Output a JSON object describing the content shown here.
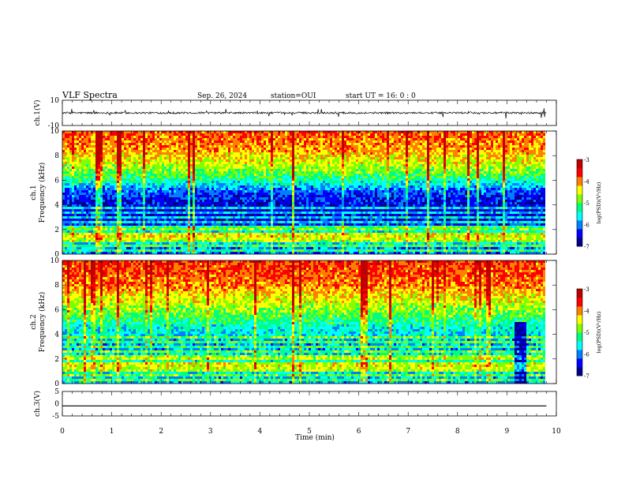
{
  "header": {
    "title": "VLF Spectra",
    "date": "Sep. 26, 2024",
    "station": "station=OUI",
    "start": "start UT =  16: 0  : 0"
  },
  "chart_data": [
    {
      "type": "line",
      "panel": "ch1-waveform",
      "ylabel": "ch.1(V)",
      "ylim": [
        -10,
        10
      ],
      "yticks": [
        "10",
        "-10"
      ],
      "xlim": [
        0,
        10
      ],
      "description_of_series": "noisy waveform centred near 0 V with spikes up to about +/-4 V; data ends near 9.8 min",
      "x": [
        0,
        1,
        2,
        3,
        4,
        5,
        6,
        7,
        8,
        9,
        9.8
      ],
      "values": [
        0,
        0,
        0,
        0,
        0,
        0,
        0,
        0,
        0,
        0,
        0
      ],
      "noise_amplitude": 1.5
    },
    {
      "type": "heatmap",
      "panel": "ch1-spectrogram",
      "ylabel": "ch.1\nFrequency (kHz)",
      "ylabel_lines": [
        "ch.1",
        "Frequency (kHz)"
      ],
      "ylim": [
        0,
        10
      ],
      "yticks": [
        "0",
        "2",
        "4",
        "6",
        "8",
        "10"
      ],
      "xlim": [
        0,
        10
      ],
      "data_end_min": 9.8,
      "colorbar": {
        "label": "log(PSD)(V²/Hz)",
        "range": [
          -7,
          -3
        ],
        "ticks": [
          "-3",
          "-4",
          "-5",
          "-6",
          "-7"
        ],
        "colors": [
          "#000090",
          "#0000ff",
          "#0080ff",
          "#00ffff",
          "#00ff80",
          "#80ff00",
          "#ffff00",
          "#ff8000",
          "#ff0000",
          "#c00000"
        ]
      },
      "frequency_kHz": [
        0.5,
        1,
        1.5,
        2,
        2.5,
        3,
        3.5,
        4,
        4.5,
        5,
        5.5,
        6,
        6.5,
        7,
        7.5,
        8,
        8.5,
        9,
        9.5,
        10
      ],
      "mean_log_psd_profile": [
        -6.0,
        -5.6,
        -5.2,
        -5.6,
        -6.4,
        -6.5,
        -6.6,
        -6.5,
        -6.4,
        -6.2,
        -5.8,
        -5.3,
        -5.0,
        -4.7,
        -4.5,
        -4.3,
        -4.1,
        -4.0,
        -3.9,
        -3.8
      ]
    },
    {
      "type": "heatmap",
      "panel": "ch2-spectrogram",
      "ylabel": "ch.2\nFrequency (kHz)",
      "ylabel_lines": [
        "ch.2",
        "Frequency (kHz)"
      ],
      "ylim": [
        0,
        10
      ],
      "yticks": [
        "0",
        "2",
        "4",
        "6",
        "8",
        "10"
      ],
      "xlim": [
        0,
        10
      ],
      "data_end_min": 9.8,
      "colorbar": {
        "label": "log(PSD)(V²/Hz)",
        "range": [
          -7,
          -3
        ],
        "ticks": [
          "-3",
          "-4",
          "-5",
          "-6",
          "-7"
        ],
        "colors": [
          "#000090",
          "#0000ff",
          "#0080ff",
          "#00ffff",
          "#00ff80",
          "#80ff00",
          "#ffff00",
          "#ff8000",
          "#ff0000",
          "#c00000"
        ]
      },
      "frequency_kHz": [
        0.5,
        1,
        1.5,
        2,
        2.5,
        3,
        3.5,
        4,
        4.5,
        5,
        5.5,
        6,
        6.5,
        7,
        7.5,
        8,
        8.5,
        9,
        9.5,
        10
      ],
      "mean_log_psd_profile": [
        -5.8,
        -5.5,
        -5.3,
        -5.4,
        -5.7,
        -5.9,
        -5.8,
        -5.6,
        -5.5,
        -5.3,
        -5.0,
        -4.8,
        -4.6,
        -4.4,
        -4.2,
        -4.0,
        -3.9,
        -3.8,
        -3.8,
        -3.7
      ]
    },
    {
      "type": "line",
      "panel": "ch3-waveform",
      "ylabel": "ch.3(V)",
      "ylim": [
        -5,
        5
      ],
      "yticks": [
        "5",
        "0",
        "-5"
      ],
      "xlim": [
        0,
        10
      ],
      "x": [
        0,
        9.8
      ],
      "values": [
        -0.9,
        -0.9
      ]
    }
  ],
  "xaxis": {
    "label": "Time (min)",
    "ticks": [
      "0",
      "1",
      "2",
      "3",
      "4",
      "5",
      "6",
      "7",
      "8",
      "9",
      "10"
    ]
  }
}
